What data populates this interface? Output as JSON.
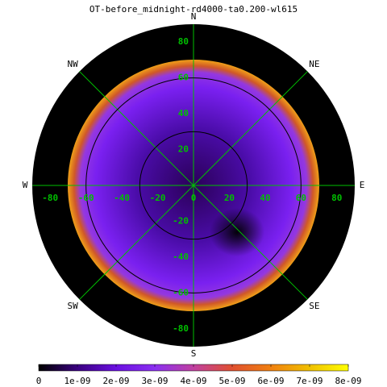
{
  "chart_data": {
    "type": "polar-heatmap",
    "title": "OT-before_midnight-rd4000-ta0.200-wl615",
    "xlim": [
      -90,
      90
    ],
    "ylim": [
      -90,
      90
    ],
    "xticks": [
      -80,
      -60,
      -40,
      -20,
      0,
      20,
      40,
      60,
      80
    ],
    "yticks": [
      -80,
      -60,
      -40,
      -20,
      0,
      20,
      40,
      60,
      80
    ],
    "rings": [
      30,
      60
    ],
    "compass": [
      "N",
      "NE",
      "E",
      "SE",
      "S",
      "SW",
      "W",
      "NW"
    ],
    "cblim": [
      0,
      8e-09
    ],
    "cbticks": [
      0,
      {
        "value": 1e-09,
        "label": "1e-09"
      },
      {
        "value": 2e-09,
        "label": "2e-09"
      },
      {
        "value": 3e-09,
        "label": "3e-09"
      },
      {
        "value": 4e-09,
        "label": "4e-09"
      },
      {
        "value": 5e-09,
        "label": "5e-09"
      },
      {
        "value": 6e-09,
        "label": "6e-09"
      },
      {
        "value": 7e-09,
        "label": "7e-09"
      },
      {
        "value": 8e-09,
        "label": "8e-09"
      }
    ],
    "colormap": [
      "#000000",
      "#3a0080",
      "#6a10e0",
      "#8a30f0",
      "#c040a0",
      "#e05030",
      "#f08010",
      "#f0c000",
      "#ffff00"
    ]
  }
}
